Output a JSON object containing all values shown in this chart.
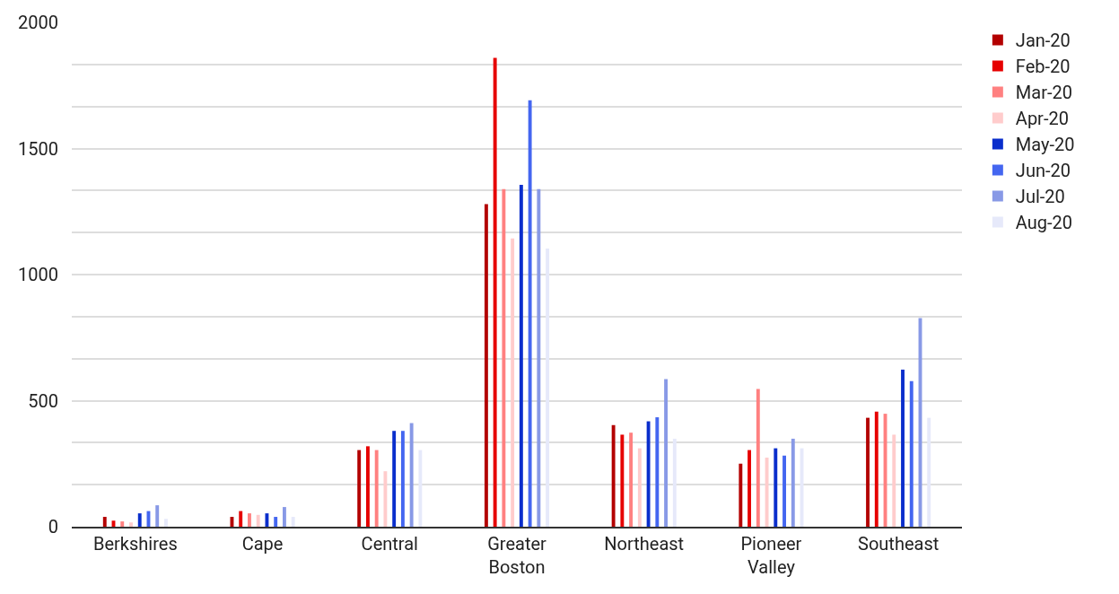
{
  "chart_data": {
    "type": "bar",
    "categories": [
      "Berkshires",
      "Cape",
      "Central",
      "Greater Boston",
      "Northeast",
      "Pioneer Valley",
      "Southeast"
    ],
    "series": [
      {
        "name": "Jan-20",
        "color": "#b30000",
        "values": [
          39,
          39,
          304,
          1279,
          403,
          250,
          432
        ]
      },
      {
        "name": "Feb-20",
        "color": "#e60000",
        "values": [
          24,
          62,
          319,
          1859,
          365,
          304,
          456
        ]
      },
      {
        "name": "Mar-20",
        "color": "#ff8080",
        "values": [
          21,
          53,
          304,
          1339,
          373,
          546,
          448
        ]
      },
      {
        "name": "Apr-20",
        "color": "#ffcccc",
        "values": [
          17,
          47,
          220,
          1143,
          311,
          274,
          365
        ]
      },
      {
        "name": "May-20",
        "color": "#0a2ecc",
        "values": [
          53,
          53,
          380,
          1356,
          418,
          311,
          623
        ]
      },
      {
        "name": "Jun-20",
        "color": "#4466f0",
        "values": [
          62,
          39,
          380,
          1691,
          434,
          282,
          577
        ]
      },
      {
        "name": "Jul-20",
        "color": "#8899e6",
        "values": [
          85,
          78,
          411,
          1339,
          585,
          349,
          827
        ]
      },
      {
        "name": "Aug-20",
        "color": "#e6e9fa",
        "values": [
          31,
          39,
          304,
          1103,
          349,
          311,
          432
        ]
      }
    ],
    "ylim": [
      0,
      2000
    ],
    "yticks": [
      0,
      {
        "value": 166.67,
        "label": null
      },
      {
        "value": 333.33,
        "label": null
      },
      500,
      {
        "value": 666.67,
        "label": null
      },
      {
        "value": 833.33,
        "label": null
      },
      1000,
      {
        "value": 1166.67,
        "label": null
      },
      {
        "value": 1333.33,
        "label": null
      },
      1500,
      {
        "value": 1666.67,
        "label": null
      },
      {
        "value": 1833.33,
        "label": null
      },
      2000
    ],
    "grid": true,
    "legend": "top right"
  }
}
